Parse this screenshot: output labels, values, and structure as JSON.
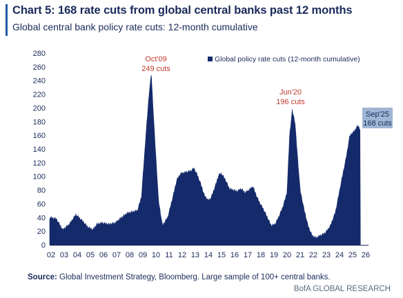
{
  "header": {
    "title": "Chart 5: 168 rate cuts from global central banks past 12 months",
    "subtitle": "Global central bank policy rate cuts: 12-month cumulative"
  },
  "footer": {
    "source_label": "Source:",
    "source_text": " Global Investment Strategy, Bloomberg. Large sample of 100+ central banks.",
    "brand": "BofA GLOBAL RESEARCH"
  },
  "colors": {
    "series": "#142a6b",
    "annotation": "#c0392b",
    "highlight_box": "#9fb6d4"
  },
  "chart_data": {
    "type": "area",
    "title": "",
    "xlabel": "",
    "ylabel": "",
    "ylim": [
      0,
      280
    ],
    "yticks": [
      "0",
      "20",
      "40",
      "60",
      "80",
      "100",
      "120",
      "140",
      "160",
      "180",
      "200",
      "220",
      "240",
      "260",
      "280"
    ],
    "xticks": [
      "02",
      "03",
      "04",
      "05",
      "06",
      "07",
      "08",
      "09",
      "10",
      "11",
      "12",
      "13",
      "14",
      "15",
      "16",
      "17",
      "18",
      "19",
      "20",
      "21",
      "22",
      "23",
      "24",
      "25",
      "26"
    ],
    "grid": false,
    "legend": {
      "placement": "top-right",
      "entries": [
        "Global policy rate cuts (12-month cumulative)"
      ]
    },
    "series": [
      {
        "name": "Global policy rate cuts (12-month cumulative)",
        "x": [
          2002.0,
          2002.5,
          2003.0,
          2003.5,
          2004.0,
          2004.5,
          2004.9,
          2005.3,
          2005.6,
          2006.0,
          2006.5,
          2007.0,
          2007.5,
          2007.9,
          2008.3,
          2008.7,
          2009.0,
          2009.3,
          2009.6,
          2009.75,
          2010.0,
          2010.3,
          2010.6,
          2011.0,
          2011.4,
          2011.7,
          2012.0,
          2012.4,
          2012.8,
          2013.0,
          2013.3,
          2013.5,
          2013.8,
          2014.1,
          2014.3,
          2014.6,
          2014.9,
          2015.1,
          2015.4,
          2015.7,
          2016.0,
          2016.3,
          2016.6,
          2016.9,
          2017.2,
          2017.5,
          2017.8,
          2018.0,
          2018.3,
          2018.6,
          2018.9,
          2019.2,
          2019.5,
          2019.8,
          2020.1,
          2020.3,
          2020.5,
          2020.7,
          2020.9,
          2021.1,
          2021.4,
          2021.7,
          2022.0,
          2022.3,
          2022.6,
          2023.0,
          2023.4,
          2023.8,
          2024.2,
          2024.6,
          2024.9,
          2025.2,
          2025.5,
          2025.7
        ],
        "values": [
          40,
          38,
          22,
          30,
          44,
          35,
          26,
          22,
          30,
          32,
          30,
          32,
          40,
          46,
          48,
          50,
          70,
          150,
          225,
          249,
          160,
          65,
          28,
          40,
          70,
          95,
          104,
          106,
          108,
          112,
          100,
          90,
          72,
          65,
          68,
          84,
          102,
          104,
          95,
          82,
          80,
          78,
          82,
          76,
          80,
          85,
          70,
          62,
          52,
          40,
          28,
          30,
          42,
          56,
          76,
          160,
          196,
          180,
          130,
          80,
          52,
          28,
          14,
          10,
          13,
          17,
          27,
          48,
          88,
          126,
          160,
          165,
          174,
          168
        ]
      }
    ],
    "annotations": [
      {
        "date": "Oct'09",
        "text": "249 cuts",
        "x": 2009.75,
        "y": 249
      },
      {
        "date": "Jun'20",
        "text": "196 cuts",
        "x": 2020.5,
        "y": 196
      },
      {
        "date": "Sep'25",
        "text": "168 cuts",
        "x": 2025.7,
        "y": 168
      }
    ]
  }
}
